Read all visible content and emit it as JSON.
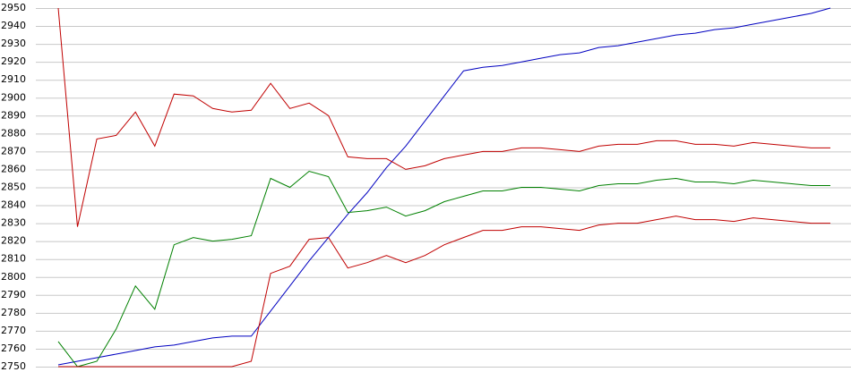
{
  "chart_data": {
    "type": "line",
    "ylim": [
      2750,
      2950
    ],
    "yticks": [
      2750,
      2760,
      2770,
      2780,
      2790,
      2800,
      2810,
      2820,
      2830,
      2840,
      2850,
      2860,
      2870,
      2880,
      2890,
      2900,
      2910,
      2920,
      2930,
      2940,
      2950
    ],
    "grid": true,
    "series": [
      {
        "color": "#0000c0",
        "values": [
          2751,
          2753,
          2755,
          2757,
          2759,
          2761,
          2762,
          2764,
          2766,
          2767,
          2767,
          2781,
          2795,
          2809,
          2822,
          2835,
          2847,
          2861,
          2873,
          2887,
          2901,
          2915,
          2917,
          2918,
          2920,
          2922,
          2924,
          2925,
          2928,
          2929,
          2931,
          2933,
          2935,
          2936,
          2938,
          2939,
          2941,
          2943,
          2945,
          2947,
          2950
        ]
      },
      {
        "color": "#c00000",
        "values": [
          2950,
          2828,
          2877,
          2879,
          2892,
          2873,
          2902,
          2901,
          2894,
          2892,
          2893,
          2908,
          2894,
          2897,
          2890,
          2867,
          2866,
          2866,
          2860,
          2862,
          2866,
          2868,
          2870,
          2870,
          2872,
          2872,
          2871,
          2870,
          2873,
          2874,
          2874,
          2876,
          2876,
          2874,
          2874,
          2873,
          2875,
          2874,
          2873,
          2872,
          2872
        ]
      },
      {
        "color": "#008000",
        "values": [
          2764,
          2750,
          2753,
          2771,
          2795,
          2782,
          2818,
          2822,
          2820,
          2821,
          2823,
          2855,
          2850,
          2859,
          2856,
          2836,
          2837,
          2839,
          2834,
          2837,
          2842,
          2845,
          2848,
          2848,
          2850,
          2850,
          2849,
          2848,
          2851,
          2852,
          2852,
          2854,
          2855,
          2853,
          2853,
          2852,
          2854,
          2853,
          2852,
          2851,
          2851
        ]
      },
      {
        "color": "#c00000",
        "values": [
          2750,
          2750,
          2750,
          2750,
          2750,
          2750,
          2750,
          2750,
          2750,
          2750,
          2753,
          2802,
          2806,
          2821,
          2822,
          2805,
          2808,
          2812,
          2808,
          2812,
          2818,
          2822,
          2826,
          2826,
          2828,
          2828,
          2827,
          2826,
          2829,
          2830,
          2830,
          2832,
          2834,
          2832,
          2832,
          2831,
          2833,
          2832,
          2831,
          2830,
          2830
        ]
      }
    ]
  }
}
